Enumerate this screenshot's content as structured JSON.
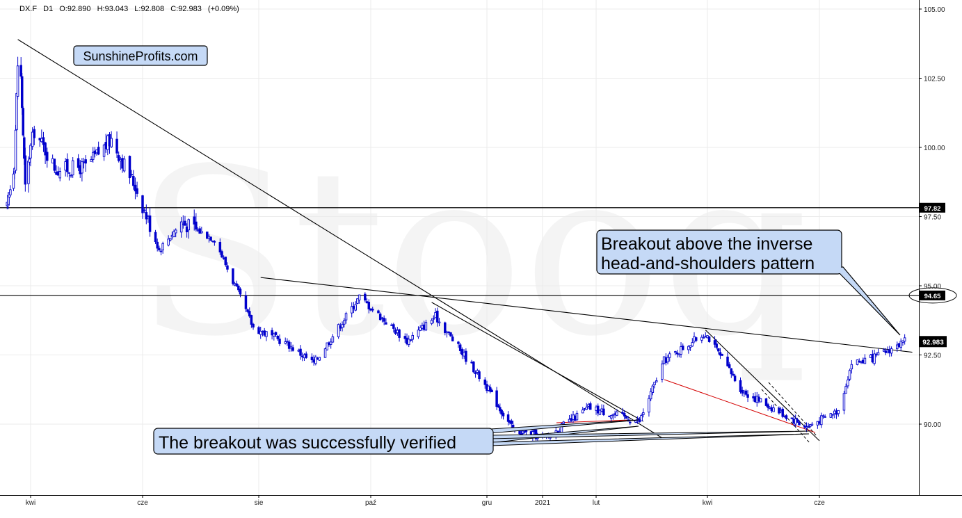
{
  "header": {
    "symbol": "DX.F",
    "interval": "D1",
    "open": "O:92.890",
    "high": "H:93.043",
    "low": "L:92.808",
    "close": "C:92.983",
    "change": "(+0.09%)"
  },
  "watermark": "Stooq",
  "logo": "SunshineProfits.com",
  "annotations": {
    "breakout_line1": "Breakout above the inverse",
    "breakout_line2": "head-and-shoulders pattern",
    "verified": "The breakout was successfully verified"
  },
  "colors": {
    "candle": "#0000cc",
    "callout_fill": "#c5d9f6",
    "red_line": "#d40000"
  },
  "chart_data": {
    "type": "candlestick",
    "title": "DX.F D1",
    "y_axis_ticks": [
      "105.00",
      "102.50",
      "100.00",
      "97.50",
      "95.00",
      "92.50",
      "90.00"
    ],
    "x_axis_ticks": [
      "kwi",
      "cze",
      "sie",
      "paź",
      "gru",
      "2021",
      "lut",
      "kwi",
      "cze"
    ],
    "ylim": [
      87.5,
      105.5
    ],
    "horizontal_levels": [
      {
        "value": 97.82,
        "label": "97.82"
      },
      {
        "value": 94.65,
        "label": "94.65"
      }
    ],
    "last_price": {
      "value": 92.983,
      "label": "92.983"
    },
    "ohlc_last": {
      "open": 92.89,
      "high": 93.043,
      "low": 92.808,
      "close": 92.983,
      "change_pct": 0.09
    },
    "approx_close_path": [
      {
        "date": "2020-03-10",
        "close": 97.8
      },
      {
        "date": "2020-03-17",
        "close": 99.5
      },
      {
        "date": "2020-03-20",
        "close": 103.0
      },
      {
        "date": "2020-03-23",
        "close": 102.5
      },
      {
        "date": "2020-03-27",
        "close": 98.5
      },
      {
        "date": "2020-04-03",
        "close": 100.6
      },
      {
        "date": "2020-04-15",
        "close": 99.2
      },
      {
        "date": "2020-05-01",
        "close": 99.3
      },
      {
        "date": "2020-05-15",
        "close": 100.3
      },
      {
        "date": "2020-05-28",
        "close": 98.6
      },
      {
        "date": "2020-06-10",
        "close": 96.3
      },
      {
        "date": "2020-06-22",
        "close": 97.3
      },
      {
        "date": "2020-07-10",
        "close": 96.7
      },
      {
        "date": "2020-07-31",
        "close": 93.5
      },
      {
        "date": "2020-08-18",
        "close": 92.9
      },
      {
        "date": "2020-09-01",
        "close": 92.2
      },
      {
        "date": "2020-09-25",
        "close": 94.6
      },
      {
        "date": "2020-10-20",
        "close": 93.0
      },
      {
        "date": "2020-11-04",
        "close": 93.9
      },
      {
        "date": "2020-11-20",
        "close": 92.4
      },
      {
        "date": "2020-12-17",
        "close": 89.8
      },
      {
        "date": "2021-01-06",
        "close": 89.5
      },
      {
        "date": "2021-01-28",
        "close": 90.6
      },
      {
        "date": "2021-02-24",
        "close": 90.1
      },
      {
        "date": "2021-03-09",
        "close": 92.3
      },
      {
        "date": "2021-03-31",
        "close": 93.3
      },
      {
        "date": "2021-04-20",
        "close": 91.2
      },
      {
        "date": "2021-05-25",
        "close": 89.9
      },
      {
        "date": "2021-06-11",
        "close": 90.5
      },
      {
        "date": "2021-06-18",
        "close": 92.2
      },
      {
        "date": "2021-06-30",
        "close": 92.4
      },
      {
        "date": "2021-07-16",
        "close": 92.98
      }
    ],
    "trendlines": [
      {
        "name": "long-term-downtrend",
        "from": {
          "date": "2020-03-20",
          "value": 103.9
        },
        "to": {
          "date": "2021-03-08",
          "value": 89.5
        }
      },
      {
        "name": "inverse-hs-neckline",
        "from": {
          "date": "2020-08-04",
          "value": 95.3
        },
        "to": {
          "date": "2021-07-20",
          "value": 92.6
        }
      },
      {
        "name": "fall-downtrend",
        "from": {
          "date": "2020-11-02",
          "value": 94.4
        },
        "to": {
          "date": "2021-02-26",
          "value": 90.1
        }
      },
      {
        "name": "apr-may-downtrend",
        "from": {
          "date": "2021-03-31",
          "value": 93.4
        },
        "to": {
          "date": "2021-06-01",
          "value": 89.4
        }
      }
    ]
  }
}
